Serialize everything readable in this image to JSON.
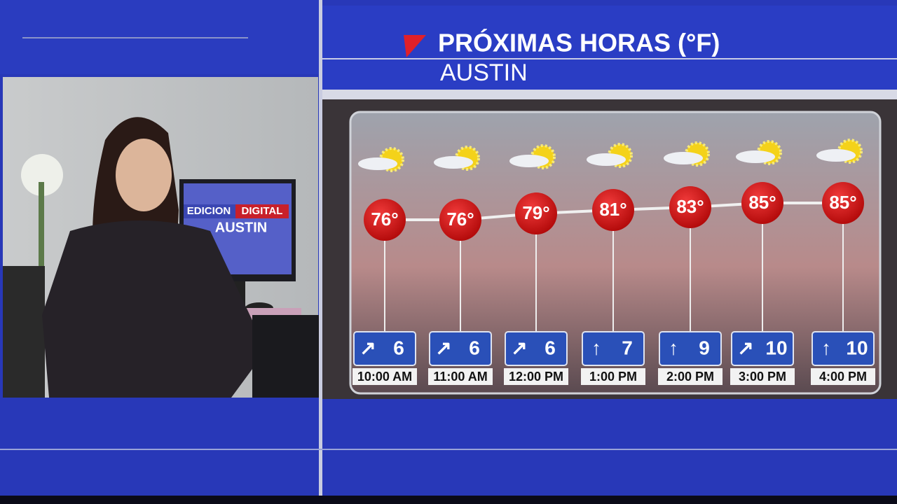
{
  "header": {
    "title": "PRÓXIMAS HORAS (°F)",
    "city": "AUSTIN"
  },
  "monitor": {
    "line1a": "EDICION",
    "line1b": "DIGITAL",
    "line2": "AUSTIN"
  },
  "hours": [
    {
      "temp": "76°",
      "wind_dir": "↗",
      "wind": "6",
      "time": "10:00 AM"
    },
    {
      "temp": "76°",
      "wind_dir": "↗",
      "wind": "6",
      "time": "11:00 AM"
    },
    {
      "temp": "79°",
      "wind_dir": "↗",
      "wind": "6",
      "time": "12:00 PM"
    },
    {
      "temp": "81°",
      "wind_dir": "↑",
      "wind": "7",
      "time": "1:00 PM"
    },
    {
      "temp": "83°",
      "wind_dir": "↑",
      "wind": "9",
      "time": "2:00 PM"
    },
    {
      "temp": "85°",
      "wind_dir": "↗",
      "wind": "10",
      "time": "3:00 PM"
    },
    {
      "temp": "85°",
      "wind_dir": "↑",
      "wind": "10",
      "time": "4:00 PM"
    }
  ]
}
